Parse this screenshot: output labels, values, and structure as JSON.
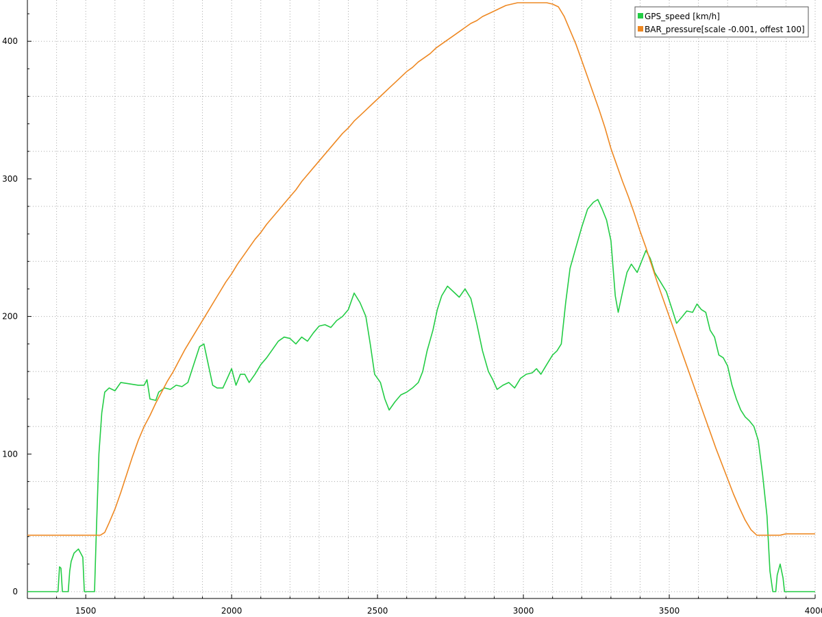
{
  "chart_data": {
    "type": "line",
    "title": "",
    "xlabel": "",
    "ylabel": "",
    "xlim": [
      1300,
      4000
    ],
    "ylim": [
      -5,
      430
    ],
    "x_ticks": [
      1500,
      2000,
      2500,
      3000,
      3500,
      4000
    ],
    "y_ticks": [
      0,
      100,
      200,
      300,
      400
    ],
    "grid": true,
    "legend_position": "top-right",
    "series": [
      {
        "name": "GPS_speed [km/h]",
        "color": "#22cc44",
        "points": [
          [
            1300,
            0
          ],
          [
            1400,
            0
          ],
          [
            1405,
            0
          ],
          [
            1410,
            18
          ],
          [
            1415,
            17
          ],
          [
            1420,
            0
          ],
          [
            1440,
            0
          ],
          [
            1445,
            15
          ],
          [
            1450,
            22
          ],
          [
            1460,
            28
          ],
          [
            1475,
            31
          ],
          [
            1490,
            25
          ],
          [
            1495,
            0
          ],
          [
            1530,
            0
          ],
          [
            1535,
            35
          ],
          [
            1545,
            100
          ],
          [
            1555,
            130
          ],
          [
            1565,
            145
          ],
          [
            1580,
            148
          ],
          [
            1600,
            146
          ],
          [
            1620,
            152
          ],
          [
            1650,
            151
          ],
          [
            1680,
            150
          ],
          [
            1700,
            150
          ],
          [
            1710,
            154
          ],
          [
            1720,
            140
          ],
          [
            1740,
            139
          ],
          [
            1750,
            145
          ],
          [
            1770,
            148
          ],
          [
            1790,
            147
          ],
          [
            1810,
            150
          ],
          [
            1830,
            149
          ],
          [
            1850,
            152
          ],
          [
            1870,
            165
          ],
          [
            1890,
            178
          ],
          [
            1905,
            180
          ],
          [
            1920,
            165
          ],
          [
            1935,
            150
          ],
          [
            1950,
            148
          ],
          [
            1970,
            148
          ],
          [
            1985,
            155
          ],
          [
            2000,
            162
          ],
          [
            2015,
            150
          ],
          [
            2030,
            158
          ],
          [
            2045,
            158
          ],
          [
            2060,
            152
          ],
          [
            2080,
            158
          ],
          [
            2100,
            165
          ],
          [
            2120,
            170
          ],
          [
            2140,
            176
          ],
          [
            2160,
            182
          ],
          [
            2180,
            185
          ],
          [
            2200,
            184
          ],
          [
            2220,
            180
          ],
          [
            2240,
            185
          ],
          [
            2260,
            182
          ],
          [
            2280,
            188
          ],
          [
            2300,
            193
          ],
          [
            2320,
            194
          ],
          [
            2340,
            192
          ],
          [
            2360,
            197
          ],
          [
            2380,
            200
          ],
          [
            2400,
            205
          ],
          [
            2420,
            217
          ],
          [
            2440,
            210
          ],
          [
            2460,
            200
          ],
          [
            2475,
            180
          ],
          [
            2490,
            158
          ],
          [
            2510,
            152
          ],
          [
            2525,
            140
          ],
          [
            2540,
            132
          ],
          [
            2560,
            138
          ],
          [
            2580,
            143
          ],
          [
            2600,
            145
          ],
          [
            2620,
            148
          ],
          [
            2640,
            152
          ],
          [
            2655,
            160
          ],
          [
            2670,
            175
          ],
          [
            2690,
            190
          ],
          [
            2705,
            205
          ],
          [
            2720,
            215
          ],
          [
            2740,
            222
          ],
          [
            2760,
            218
          ],
          [
            2780,
            214
          ],
          [
            2800,
            220
          ],
          [
            2820,
            213
          ],
          [
            2840,
            195
          ],
          [
            2860,
            175
          ],
          [
            2880,
            160
          ],
          [
            2895,
            154
          ],
          [
            2910,
            147
          ],
          [
            2930,
            150
          ],
          [
            2950,
            152
          ],
          [
            2970,
            148
          ],
          [
            2990,
            155
          ],
          [
            3010,
            158
          ],
          [
            3030,
            159
          ],
          [
            3045,
            162
          ],
          [
            3060,
            158
          ],
          [
            3080,
            165
          ],
          [
            3100,
            172
          ],
          [
            3115,
            175
          ],
          [
            3130,
            180
          ],
          [
            3145,
            210
          ],
          [
            3160,
            235
          ],
          [
            3180,
            250
          ],
          [
            3200,
            265
          ],
          [
            3220,
            278
          ],
          [
            3240,
            283
          ],
          [
            3255,
            285
          ],
          [
            3270,
            278
          ],
          [
            3285,
            270
          ],
          [
            3300,
            255
          ],
          [
            3315,
            215
          ],
          [
            3325,
            203
          ],
          [
            3340,
            218
          ],
          [
            3355,
            232
          ],
          [
            3370,
            238
          ],
          [
            3390,
            232
          ],
          [
            3405,
            240
          ],
          [
            3420,
            248
          ],
          [
            3435,
            242
          ],
          [
            3450,
            232
          ],
          [
            3470,
            225
          ],
          [
            3490,
            218
          ],
          [
            3510,
            205
          ],
          [
            3525,
            195
          ],
          [
            3545,
            200
          ],
          [
            3560,
            204
          ],
          [
            3580,
            203
          ],
          [
            3595,
            209
          ],
          [
            3610,
            205
          ],
          [
            3625,
            203
          ],
          [
            3640,
            190
          ],
          [
            3655,
            185
          ],
          [
            3670,
            172
          ],
          [
            3685,
            170
          ],
          [
            3700,
            164
          ],
          [
            3715,
            150
          ],
          [
            3730,
            140
          ],
          [
            3745,
            132
          ],
          [
            3760,
            127
          ],
          [
            3775,
            124
          ],
          [
            3790,
            120
          ],
          [
            3805,
            110
          ],
          [
            3820,
            85
          ],
          [
            3835,
            55
          ],
          [
            3845,
            15
          ],
          [
            3855,
            0
          ],
          [
            3865,
            0
          ],
          [
            3870,
            12
          ],
          [
            3880,
            20
          ],
          [
            3890,
            10
          ],
          [
            3895,
            0
          ],
          [
            3930,
            0
          ],
          [
            4000,
            0
          ]
        ]
      },
      {
        "name": "BAR_pressure[scale -0.001, offest 100]",
        "color": "#ee8822",
        "points": [
          [
            1300,
            41
          ],
          [
            1400,
            41
          ],
          [
            1440,
            41
          ],
          [
            1480,
            41
          ],
          [
            1520,
            41
          ],
          [
            1550,
            41
          ],
          [
            1565,
            43
          ],
          [
            1580,
            50
          ],
          [
            1600,
            60
          ],
          [
            1620,
            72
          ],
          [
            1640,
            85
          ],
          [
            1660,
            98
          ],
          [
            1680,
            110
          ],
          [
            1700,
            120
          ],
          [
            1720,
            128
          ],
          [
            1740,
            137
          ],
          [
            1760,
            145
          ],
          [
            1780,
            153
          ],
          [
            1800,
            160
          ],
          [
            1820,
            168
          ],
          [
            1840,
            176
          ],
          [
            1860,
            183
          ],
          [
            1880,
            190
          ],
          [
            1900,
            197
          ],
          [
            1920,
            204
          ],
          [
            1940,
            211
          ],
          [
            1960,
            218
          ],
          [
            1980,
            225
          ],
          [
            2000,
            231
          ],
          [
            2020,
            238
          ],
          [
            2040,
            244
          ],
          [
            2060,
            250
          ],
          [
            2080,
            256
          ],
          [
            2100,
            261
          ],
          [
            2120,
            267
          ],
          [
            2140,
            272
          ],
          [
            2160,
            277
          ],
          [
            2180,
            282
          ],
          [
            2200,
            287
          ],
          [
            2220,
            292
          ],
          [
            2240,
            298
          ],
          [
            2260,
            303
          ],
          [
            2280,
            308
          ],
          [
            2300,
            313
          ],
          [
            2320,
            318
          ],
          [
            2340,
            323
          ],
          [
            2360,
            328
          ],
          [
            2380,
            333
          ],
          [
            2400,
            337
          ],
          [
            2420,
            342
          ],
          [
            2440,
            346
          ],
          [
            2460,
            350
          ],
          [
            2480,
            354
          ],
          [
            2500,
            358
          ],
          [
            2520,
            362
          ],
          [
            2540,
            366
          ],
          [
            2560,
            370
          ],
          [
            2580,
            374
          ],
          [
            2600,
            378
          ],
          [
            2620,
            381
          ],
          [
            2640,
            385
          ],
          [
            2660,
            388
          ],
          [
            2680,
            391
          ],
          [
            2700,
            395
          ],
          [
            2720,
            398
          ],
          [
            2740,
            401
          ],
          [
            2760,
            404
          ],
          [
            2780,
            407
          ],
          [
            2800,
            410
          ],
          [
            2820,
            413
          ],
          [
            2840,
            415
          ],
          [
            2860,
            418
          ],
          [
            2880,
            420
          ],
          [
            2900,
            422
          ],
          [
            2920,
            424
          ],
          [
            2940,
            426
          ],
          [
            2960,
            427
          ],
          [
            2980,
            428
          ],
          [
            3000,
            428
          ],
          [
            3020,
            428
          ],
          [
            3040,
            428
          ],
          [
            3060,
            428
          ],
          [
            3080,
            428
          ],
          [
            3100,
            427
          ],
          [
            3120,
            425
          ],
          [
            3140,
            418
          ],
          [
            3160,
            408
          ],
          [
            3180,
            398
          ],
          [
            3200,
            386
          ],
          [
            3220,
            374
          ],
          [
            3240,
            362
          ],
          [
            3260,
            350
          ],
          [
            3280,
            337
          ],
          [
            3300,
            322
          ],
          [
            3320,
            310
          ],
          [
            3340,
            298
          ],
          [
            3360,
            287
          ],
          [
            3380,
            275
          ],
          [
            3400,
            262
          ],
          [
            3420,
            250
          ],
          [
            3440,
            237
          ],
          [
            3460,
            224
          ],
          [
            3480,
            212
          ],
          [
            3500,
            200
          ],
          [
            3520,
            188
          ],
          [
            3540,
            176
          ],
          [
            3560,
            164
          ],
          [
            3580,
            152
          ],
          [
            3600,
            140
          ],
          [
            3620,
            128
          ],
          [
            3640,
            116
          ],
          [
            3660,
            104
          ],
          [
            3680,
            93
          ],
          [
            3700,
            82
          ],
          [
            3720,
            71
          ],
          [
            3740,
            61
          ],
          [
            3760,
            52
          ],
          [
            3780,
            45
          ],
          [
            3800,
            41
          ],
          [
            3830,
            41
          ],
          [
            3860,
            41
          ],
          [
            3880,
            41
          ],
          [
            3900,
            42
          ],
          [
            3940,
            42
          ],
          [
            4000,
            42
          ]
        ]
      }
    ]
  }
}
